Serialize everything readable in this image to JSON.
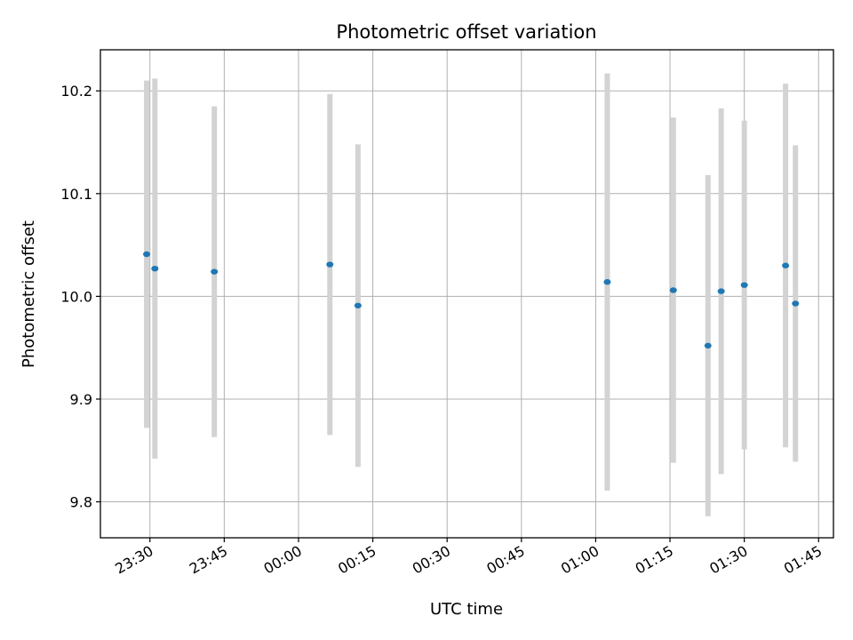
{
  "chart_data": {
    "type": "scatter",
    "title": "Photometric offset variation",
    "xlabel": "UTC time",
    "ylabel": "Photometric offset",
    "grid": true,
    "xlim": [
      "23:20",
      "01:48"
    ],
    "ylim": [
      9.765,
      10.24
    ],
    "x_ticks": [
      "23:30",
      "23:45",
      "00:00",
      "00:15",
      "00:30",
      "00:45",
      "01:00",
      "01:15",
      "01:30",
      "01:45"
    ],
    "y_ticks": [
      "9.8",
      "9.9",
      "10.0",
      "10.1",
      "10.2"
    ],
    "colors": {
      "points": "#1f77b4",
      "error_bars": "#d3d3d3",
      "grid": "#b0b0b0"
    },
    "series": [
      {
        "points": [
          {
            "x": "23:29:20",
            "y": 10.041,
            "err": 0.169
          },
          {
            "x": "23:31:00",
            "y": 10.027,
            "err": 0.185
          },
          {
            "x": "23:43:00",
            "y": 10.024,
            "err": 0.161
          },
          {
            "x": "00:06:20",
            "y": 10.031,
            "err": 0.166
          },
          {
            "x": "00:12:00",
            "y": 9.991,
            "err": 0.157
          },
          {
            "x": "01:02:20",
            "y": 10.014,
            "err": 0.203
          },
          {
            "x": "01:15:40",
            "y": 10.006,
            "err": 0.168
          },
          {
            "x": "01:22:40",
            "y": 9.952,
            "err": 0.166
          },
          {
            "x": "01:25:20",
            "y": 10.005,
            "err": 0.178
          },
          {
            "x": "01:30:00",
            "y": 10.011,
            "err": 0.16
          },
          {
            "x": "01:38:20",
            "y": 10.03,
            "err": 0.177
          },
          {
            "x": "01:40:20",
            "y": 9.993,
            "err": 0.154
          }
        ]
      }
    ]
  }
}
